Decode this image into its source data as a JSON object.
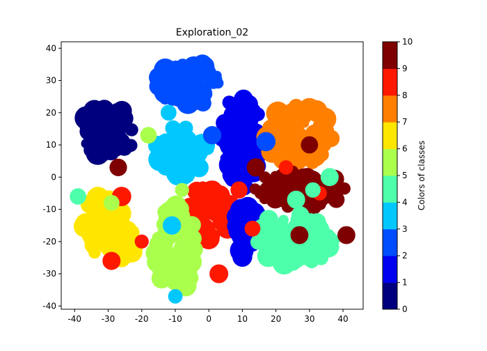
{
  "chart_data": {
    "type": "scatter",
    "title": "Exploration_02",
    "xlim": [
      -44,
      46
    ],
    "ylim": [
      -41,
      42
    ],
    "xticks": [
      -40,
      -30,
      -20,
      -10,
      0,
      10,
      20,
      30,
      40
    ],
    "yticks": [
      -40,
      -30,
      -20,
      -10,
      0,
      10,
      20,
      30,
      40
    ],
    "colorbar": {
      "label": "Colors of classes",
      "min": 0,
      "max": 10,
      "ticks": [
        0,
        1,
        2,
        3,
        4,
        5,
        6,
        7,
        8,
        9,
        10
      ],
      "colors": [
        "#00007f",
        "#0000f1",
        "#004cff",
        "#00c8ff",
        "#4dffaa",
        "#aaff4d",
        "#ffe600",
        "#ff7f00",
        "#ff1800",
        "#7f0000"
      ]
    },
    "clusters": [
      {
        "class": 0,
        "cx": -30,
        "cy": 14,
        "rx": 8,
        "ry": 8,
        "n": 60
      },
      {
        "class": 2,
        "cx": -6,
        "cy": 29,
        "rx": 10,
        "ry": 7,
        "n": 60
      },
      {
        "class": 3,
        "cx": -8,
        "cy": 8,
        "rx": 8,
        "ry": 8,
        "n": 60
      },
      {
        "class": 1,
        "cx": 10,
        "cy": 12,
        "rx": 6,
        "ry": 15,
        "n": 70
      },
      {
        "class": 7,
        "cx": 27,
        "cy": 13,
        "rx": 10,
        "ry": 9,
        "n": 60
      },
      {
        "class": 9,
        "cx": 27,
        "cy": -4,
        "rx": 14,
        "ry": 6,
        "n": 70
      },
      {
        "class": 8,
        "cx": 0,
        "cy": -11,
        "rx": 7,
        "ry": 9,
        "n": 55
      },
      {
        "class": 1,
        "cx": 11,
        "cy": -17,
        "rx": 4,
        "ry": 8,
        "n": 35
      },
      {
        "class": 4,
        "cx": 26,
        "cy": -19,
        "rx": 12,
        "ry": 8,
        "n": 70
      },
      {
        "class": 6,
        "cx": -32,
        "cy": -15,
        "rx": 6,
        "ry": 9,
        "n": 50
      },
      {
        "class": 6,
        "cx": -25,
        "cy": -20,
        "rx": 4,
        "ry": 6,
        "n": 20
      },
      {
        "class": 5,
        "cx": -10,
        "cy": -22,
        "rx": 6,
        "ry": 14,
        "n": 65
      }
    ],
    "outliers": [
      {
        "class": 9,
        "x": -27,
        "y": 3
      },
      {
        "class": 9,
        "x": 14,
        "y": 3
      },
      {
        "class": 8,
        "x": -26,
        "y": -6
      },
      {
        "class": 8,
        "x": -20,
        "y": -20
      },
      {
        "class": 8,
        "x": -29,
        "y": -26
      },
      {
        "class": 8,
        "x": 3,
        "y": -30
      },
      {
        "class": 8,
        "x": 23,
        "y": 3
      },
      {
        "class": 8,
        "x": 33,
        "y": -5
      },
      {
        "class": 2,
        "x": 17,
        "y": 11
      },
      {
        "class": 2,
        "x": 1,
        "y": 13
      },
      {
        "class": 3,
        "x": -11,
        "y": -15
      },
      {
        "class": 3,
        "x": -10,
        "y": -37
      },
      {
        "class": 3,
        "x": -12,
        "y": 20
      },
      {
        "class": 4,
        "x": -39,
        "y": -6
      },
      {
        "class": 4,
        "x": 26,
        "y": -7
      },
      {
        "class": 4,
        "x": 31,
        "y": -4
      },
      {
        "class": 4,
        "x": 36,
        "y": 0
      },
      {
        "class": 5,
        "x": -8,
        "y": -4
      },
      {
        "class": 5,
        "x": -18,
        "y": 13
      },
      {
        "class": 5,
        "x": -29,
        "y": -8
      },
      {
        "class": 9,
        "x": 27,
        "y": -18
      },
      {
        "class": 9,
        "x": 38,
        "y": -7
      },
      {
        "class": 9,
        "x": 41,
        "y": -18
      },
      {
        "class": 8,
        "x": 13,
        "y": -16
      },
      {
        "class": 8,
        "x": 9,
        "y": -4
      },
      {
        "class": 9,
        "x": 30,
        "y": 10
      }
    ]
  }
}
